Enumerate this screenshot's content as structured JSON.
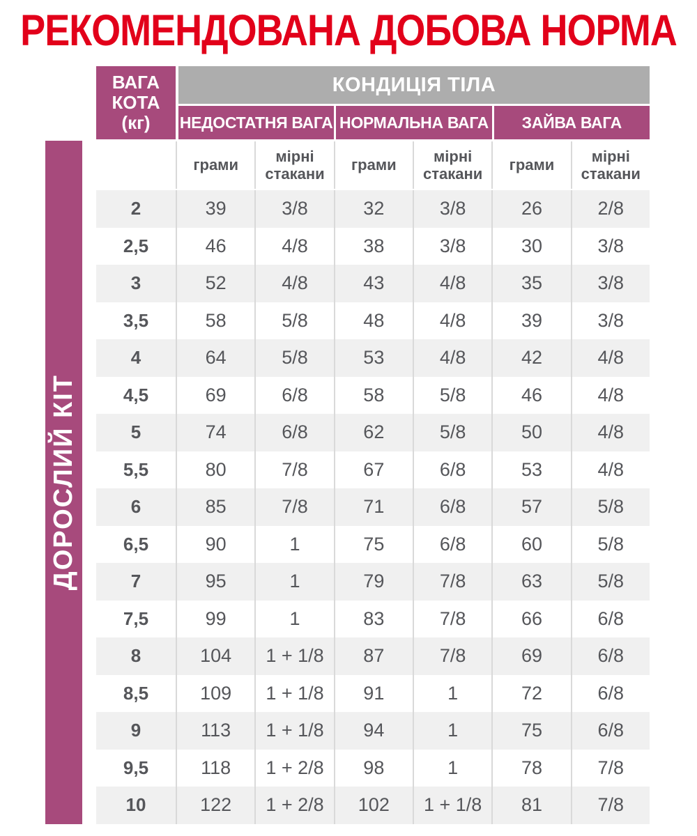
{
  "page": {
    "title": "РЕКОМЕНДОВАНА ДОБОВА НОРМА"
  },
  "side_label": "ДОРОСЛИЙ КІТ",
  "table": {
    "weight_header_lines": [
      "ВАГА",
      "КОТА",
      "(кг)"
    ],
    "condition_header": "КОНДИЦІЯ ТІЛА",
    "sections": [
      "НЕДОСТАТНЯ ВАГА",
      "НОРМАЛЬНА ВАГА",
      "ЗАЙВА ВАГА"
    ],
    "unit_headers": [
      "грами",
      "мірні стакани",
      "грами",
      "мірні стакани",
      "грами",
      "мірні стакани"
    ],
    "rows": [
      {
        "weight": "2",
        "values": [
          "39",
          "3/8",
          "32",
          "3/8",
          "26",
          "2/8"
        ]
      },
      {
        "weight": "2,5",
        "values": [
          "46",
          "4/8",
          "38",
          "3/8",
          "30",
          "3/8"
        ]
      },
      {
        "weight": "3",
        "values": [
          "52",
          "4/8",
          "43",
          "4/8",
          "35",
          "3/8"
        ]
      },
      {
        "weight": "3,5",
        "values": [
          "58",
          "5/8",
          "48",
          "4/8",
          "39",
          "3/8"
        ]
      },
      {
        "weight": "4",
        "values": [
          "64",
          "5/8",
          "53",
          "4/8",
          "42",
          "4/8"
        ]
      },
      {
        "weight": "4,5",
        "values": [
          "69",
          "6/8",
          "58",
          "5/8",
          "46",
          "4/8"
        ]
      },
      {
        "weight": "5",
        "values": [
          "74",
          "6/8",
          "62",
          "5/8",
          "50",
          "4/8"
        ]
      },
      {
        "weight": "5,5",
        "values": [
          "80",
          "7/8",
          "67",
          "6/8",
          "53",
          "4/8"
        ]
      },
      {
        "weight": "6",
        "values": [
          "85",
          "7/8",
          "71",
          "6/8",
          "57",
          "5/8"
        ]
      },
      {
        "weight": "6,5",
        "values": [
          "90",
          "1",
          "75",
          "6/8",
          "60",
          "5/8"
        ]
      },
      {
        "weight": "7",
        "values": [
          "95",
          "1",
          "79",
          "7/8",
          "63",
          "5/8"
        ]
      },
      {
        "weight": "7,5",
        "values": [
          "99",
          "1",
          "83",
          "7/8",
          "66",
          "6/8"
        ]
      },
      {
        "weight": "8",
        "values": [
          "104",
          "1 + 1/8",
          "87",
          "7/8",
          "69",
          "6/8"
        ]
      },
      {
        "weight": "8,5",
        "values": [
          "109",
          "1 + 1/8",
          "91",
          "1",
          "72",
          "6/8"
        ]
      },
      {
        "weight": "9",
        "values": [
          "113",
          "1 + 1/8",
          "94",
          "1",
          "75",
          "6/8"
        ]
      },
      {
        "weight": "9,5",
        "values": [
          "118",
          "1 + 2/8",
          "98",
          "1",
          "78",
          "7/8"
        ]
      },
      {
        "weight": "10",
        "values": [
          "122",
          "1 + 2/8",
          "102",
          "1 + 1/8",
          "81",
          "7/8"
        ]
      }
    ]
  },
  "colors": {
    "red": "#e2001a",
    "magenta": "#a74a7c",
    "gray": "#adadad",
    "stripe": "#f0f0f0",
    "ink": "#55565a",
    "line": "#d9d9d9"
  }
}
